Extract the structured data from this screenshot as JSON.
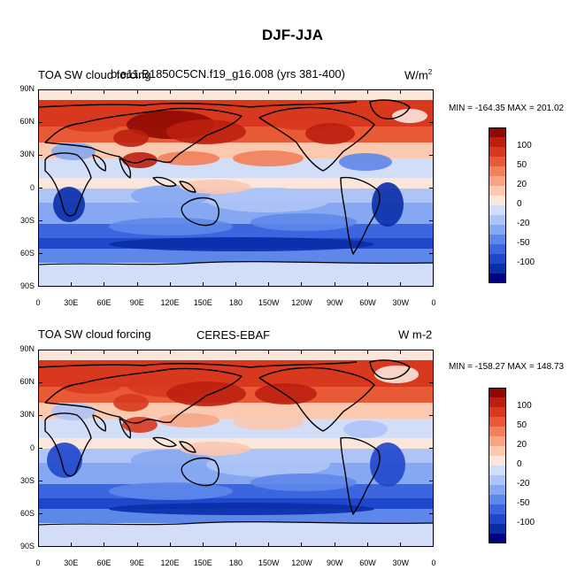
{
  "figure": {
    "title": "DJF-JJA"
  },
  "palette": [
    "#000080",
    "#0a2ea8",
    "#1f47cc",
    "#3b66e0",
    "#5e87ea",
    "#86a8f2",
    "#aec4f6",
    "#d2def8",
    "#fbe6dc",
    "#fbc8b0",
    "#f7a584",
    "#f2805a",
    "#e85a35",
    "#d8391e",
    "#bc1f10",
    "#8f0a03"
  ],
  "colorbar_labels": [
    "100",
    "50",
    "20",
    "0",
    "-20",
    "-50",
    "-100"
  ],
  "x_ticks": [
    "0",
    "30E",
    "60E",
    "90E",
    "120E",
    "150E",
    "180",
    "150W",
    "120W",
    "90W",
    "60W",
    "30W",
    "0"
  ],
  "y_ticks": [
    "90N",
    "60N",
    "30N",
    "0",
    "30S",
    "60S",
    "90S"
  ],
  "panels": [
    {
      "left_title": "TOA SW cloud forcing",
      "center_title": "b.e11.B1850C5CN.f19_g16.008 (yrs 381-400)",
      "units_base": "W/m",
      "units_sup": "2",
      "minmax": "MIN = -164.35 MAX = 201.02"
    },
    {
      "left_title": "TOA SW cloud forcing",
      "center_title": "CERES-EBAF",
      "units_base": "W m-2",
      "units_sup": "",
      "minmax": "MIN = -158.27 MAX = 148.73"
    }
  ]
}
